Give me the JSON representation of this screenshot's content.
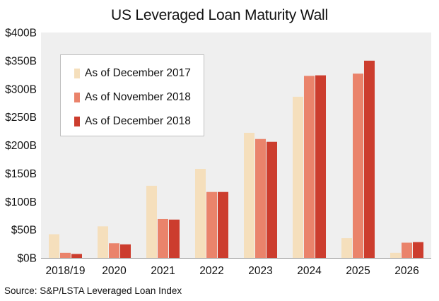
{
  "chart_data": {
    "type": "bar",
    "title": "US Leveraged Loan Maturity Wall",
    "xlabel": "",
    "ylabel": "",
    "categories": [
      "2018/19",
      "2020",
      "2021",
      "2022",
      "2023",
      "2024",
      "2025",
      "2026"
    ],
    "series": [
      {
        "name": "As of December 2017",
        "color": "#f5dfbc",
        "values": [
          42,
          56,
          128,
          158,
          222,
          286,
          35,
          9
        ]
      },
      {
        "name": "As of November 2018",
        "color": "#ea836b",
        "values": [
          9,
          26,
          69,
          117,
          211,
          323,
          327,
          27
        ]
      },
      {
        "name": "As of December 2018",
        "color": "#cc3d2e",
        "values": [
          7,
          24,
          68,
          117,
          206,
          324,
          350,
          28
        ]
      }
    ],
    "ylim": [
      0,
      400
    ],
    "yticks": [
      0,
      50,
      100,
      150,
      200,
      250,
      300,
      350,
      400
    ],
    "ytick_labels": [
      "$0B",
      "$50B",
      "$100B",
      "$150B",
      "$200B",
      "$250B",
      "$300B",
      "$350B",
      "$400B"
    ],
    "grid": false,
    "plot_background": "#efefef",
    "legend_position": "top-left",
    "source": "Source: S&P/LSTA Leveraged Loan Index"
  }
}
